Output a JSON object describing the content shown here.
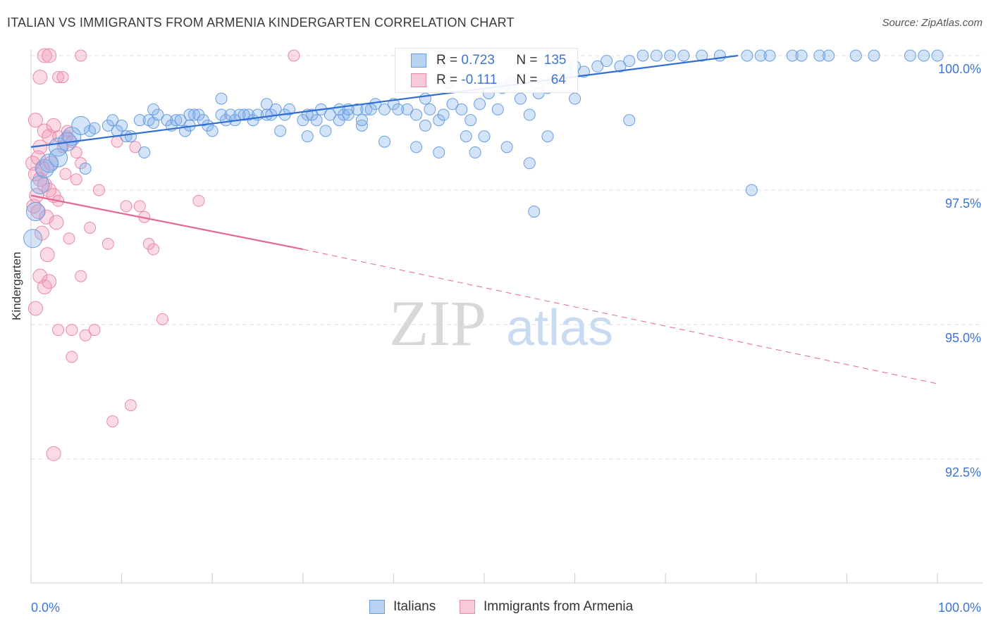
{
  "title": "ITALIAN VS IMMIGRANTS FROM ARMENIA KINDERGARTEN CORRELATION CHART",
  "source": "Source: ZipAtlas.com",
  "watermark": {
    "zip": "ZIP",
    "atlas": "atlas"
  },
  "colors": {
    "blue": "#6a9ee0",
    "blue_line": "#2f6fd1",
    "pink": "#e98aa9",
    "pink_line": "#e4688f",
    "tick_text": "#3d75d6"
  },
  "legend": {
    "italians": {
      "r_label": "R =",
      "r_value": "0.723",
      "n_label": "N =",
      "n_value": "135"
    },
    "armenia": {
      "r_label": "R =",
      "r_value": "-0.111",
      "n_label": "N =",
      "n_value": "64"
    }
  },
  "bottom_legend": {
    "italians": "Italians",
    "armenia": "Immigrants from Armenia"
  },
  "chart_data": {
    "type": "scatter",
    "title": "ITALIAN VS IMMIGRANTS FROM ARMENIA KINDERGARTEN CORRELATION CHART",
    "xlabel": "",
    "ylabel": "Kindergarten",
    "xlim": [
      0,
      100
    ],
    "ylim": [
      90.2,
      100.3
    ],
    "x_tick_labels": [
      "0.0%",
      "100.0%"
    ],
    "y_ticks": [
      92.5,
      95.0,
      97.5,
      100.0
    ],
    "y_tick_labels": [
      "92.5%",
      "95.0%",
      "97.5%",
      "100.0%"
    ],
    "grid": true,
    "series": [
      {
        "name": "Italians",
        "points": [
          [
            0.2,
            96.6
          ],
          [
            0.5,
            97.1
          ],
          [
            1.0,
            97.6
          ],
          [
            1.5,
            97.9
          ],
          [
            2.0,
            98.0
          ],
          [
            3.0,
            98.3
          ],
          [
            4.5,
            98.5
          ],
          [
            6.5,
            98.6
          ],
          [
            5.5,
            98.7
          ],
          [
            7.0,
            98.65
          ],
          [
            8.5,
            98.7
          ],
          [
            9.0,
            98.8
          ],
          [
            10.0,
            98.7
          ],
          [
            10.5,
            98.5
          ],
          [
            11.0,
            98.5
          ],
          [
            12.0,
            98.8
          ],
          [
            13.0,
            98.8
          ],
          [
            13.5,
            98.75
          ],
          [
            14.0,
            98.9
          ],
          [
            15.0,
            98.8
          ],
          [
            15.5,
            98.7
          ],
          [
            16.0,
            98.8
          ],
          [
            16.5,
            98.8
          ],
          [
            17.0,
            98.6
          ],
          [
            17.5,
            98.9
          ],
          [
            18.0,
            98.9
          ],
          [
            18.5,
            98.9
          ],
          [
            19.5,
            98.7
          ],
          [
            20.0,
            98.6
          ],
          [
            21.0,
            98.9
          ],
          [
            21.5,
            98.8
          ],
          [
            22.0,
            98.9
          ],
          [
            22.5,
            98.8
          ],
          [
            23.0,
            98.9
          ],
          [
            24.0,
            98.9
          ],
          [
            24.5,
            98.8
          ],
          [
            25.0,
            98.9
          ],
          [
            26.0,
            98.9
          ],
          [
            26.5,
            98.9
          ],
          [
            27.0,
            99.0
          ],
          [
            28.0,
            98.9
          ],
          [
            28.5,
            99.0
          ],
          [
            30.0,
            98.8
          ],
          [
            30.5,
            98.9
          ],
          [
            31.5,
            98.8
          ],
          [
            32.0,
            99.0
          ],
          [
            33.0,
            98.9
          ],
          [
            34.0,
            98.8
          ],
          [
            34.5,
            98.9
          ],
          [
            35.0,
            98.9
          ],
          [
            36.0,
            99.0
          ],
          [
            36.5,
            98.7
          ],
          [
            37.0,
            99.0
          ],
          [
            38.0,
            99.1
          ],
          [
            39.0,
            99.0
          ],
          [
            40.0,
            99.1
          ],
          [
            40.5,
            99.0
          ],
          [
            41.5,
            99.0
          ],
          [
            42.5,
            98.9
          ],
          [
            43.5,
            99.2
          ],
          [
            44.0,
            99.0
          ],
          [
            45.0,
            98.8
          ],
          [
            45.5,
            98.9
          ],
          [
            46.5,
            99.1
          ],
          [
            47.5,
            99.0
          ],
          [
            48.5,
            98.8
          ],
          [
            49.5,
            99.1
          ],
          [
            50.5,
            99.3
          ],
          [
            51.5,
            99.0
          ],
          [
            52.0,
            99.4
          ],
          [
            53.0,
            99.5
          ],
          [
            54.0,
            99.2
          ],
          [
            55.0,
            98.9
          ],
          [
            56.0,
            99.3
          ],
          [
            57.0,
            99.4
          ],
          [
            58.0,
            99.6
          ],
          [
            59.0,
            99.7
          ],
          [
            60.0,
            99.8
          ],
          [
            61.0,
            99.7
          ],
          [
            62.5,
            99.8
          ],
          [
            63.5,
            99.9
          ],
          [
            65.0,
            99.8
          ],
          [
            66.0,
            99.9
          ],
          [
            67.5,
            100.0
          ],
          [
            69.0,
            100.0
          ],
          [
            70.5,
            100.0
          ],
          [
            72.0,
            100.0
          ],
          [
            74.0,
            100.0
          ],
          [
            76.0,
            100.0
          ],
          [
            79.0,
            100.0
          ],
          [
            80.5,
            100.0
          ],
          [
            81.5,
            100.0
          ],
          [
            84.0,
            100.0
          ],
          [
            85.0,
            100.0
          ],
          [
            87.0,
            100.0
          ],
          [
            88.0,
            100.0
          ],
          [
            91.0,
            100.0
          ],
          [
            93.0,
            100.0
          ],
          [
            97.0,
            100.0
          ],
          [
            98.5,
            100.0
          ],
          [
            100.0,
            100.0
          ],
          [
            30.5,
            98.5
          ],
          [
            32.5,
            98.6
          ],
          [
            36.5,
            98.8
          ],
          [
            39.0,
            98.4
          ],
          [
            42.5,
            98.3
          ],
          [
            45.0,
            98.2
          ],
          [
            48.0,
            98.5
          ],
          [
            49.0,
            98.2
          ],
          [
            50.0,
            98.5
          ],
          [
            52.5,
            98.3
          ],
          [
            55.0,
            98.0
          ],
          [
            57.0,
            98.5
          ],
          [
            66.0,
            98.8
          ],
          [
            79.5,
            97.5
          ],
          [
            55.5,
            97.1
          ],
          [
            60.0,
            99.2
          ],
          [
            46.0,
            99.5
          ],
          [
            43.5,
            98.7
          ],
          [
            35.0,
            99.0
          ],
          [
            26.0,
            99.1
          ],
          [
            21.0,
            99.2
          ],
          [
            17.5,
            98.7
          ],
          [
            12.5,
            98.2
          ],
          [
            4.0,
            98.4
          ],
          [
            3.0,
            98.1
          ],
          [
            6.0,
            97.9
          ],
          [
            9.5,
            98.6
          ],
          [
            13.5,
            99.0
          ],
          [
            19.0,
            98.8
          ],
          [
            23.5,
            98.9
          ],
          [
            27.5,
            98.6
          ],
          [
            31.0,
            98.9
          ],
          [
            34.0,
            99.0
          ],
          [
            37.5,
            99.0
          ]
        ]
      },
      {
        "name": "Immigrants from Armenia",
        "points": [
          [
            1.5,
            100.0
          ],
          [
            2.0,
            100.0
          ],
          [
            5.5,
            100.0
          ],
          [
            29.0,
            100.0
          ],
          [
            1.0,
            99.6
          ],
          [
            3.0,
            99.6
          ],
          [
            3.5,
            99.6
          ],
          [
            0.5,
            98.8
          ],
          [
            1.5,
            98.6
          ],
          [
            2.0,
            98.5
          ],
          [
            3.0,
            98.5
          ],
          [
            3.5,
            98.3
          ],
          [
            4.0,
            98.5
          ],
          [
            4.5,
            98.4
          ],
          [
            5.0,
            98.2
          ],
          [
            5.5,
            98.0
          ],
          [
            0.2,
            98.0
          ],
          [
            0.5,
            97.8
          ],
          [
            1.0,
            97.7
          ],
          [
            1.5,
            97.6
          ],
          [
            2.0,
            97.5
          ],
          [
            2.5,
            97.4
          ],
          [
            3.0,
            97.3
          ],
          [
            0.3,
            97.2
          ],
          [
            0.8,
            97.1
          ],
          [
            1.2,
            96.7
          ],
          [
            1.8,
            96.3
          ],
          [
            9.5,
            98.4
          ],
          [
            11.5,
            98.3
          ],
          [
            12.0,
            97.2
          ],
          [
            12.5,
            97.0
          ],
          [
            13.0,
            96.5
          ],
          [
            13.5,
            96.4
          ],
          [
            18.5,
            97.3
          ],
          [
            1.0,
            95.9
          ],
          [
            1.5,
            95.7
          ],
          [
            2.0,
            95.8
          ],
          [
            0.5,
            95.3
          ],
          [
            3.0,
            94.9
          ],
          [
            4.5,
            94.9
          ],
          [
            5.5,
            95.9
          ],
          [
            6.0,
            94.8
          ],
          [
            7.0,
            94.9
          ],
          [
            8.5,
            96.5
          ],
          [
            14.5,
            95.1
          ],
          [
            4.5,
            94.4
          ],
          [
            11.0,
            93.5
          ],
          [
            9.0,
            93.2
          ],
          [
            2.5,
            92.6
          ],
          [
            1.0,
            98.3
          ],
          [
            2.5,
            98.7
          ],
          [
            4.0,
            98.6
          ],
          [
            0.8,
            98.1
          ],
          [
            1.3,
            97.9
          ],
          [
            2.2,
            98.0
          ],
          [
            3.8,
            97.8
          ],
          [
            5.0,
            97.7
          ],
          [
            0.6,
            97.4
          ],
          [
            1.7,
            97.0
          ],
          [
            2.8,
            96.9
          ],
          [
            6.5,
            96.8
          ],
          [
            10.5,
            97.2
          ],
          [
            4.2,
            96.6
          ],
          [
            7.5,
            97.5
          ]
        ]
      }
    ],
    "trend_lines": [
      {
        "series": "Italians",
        "x": [
          0,
          78
        ],
        "y": [
          98.3,
          100.0
        ]
      },
      {
        "series": "Immigrants from Armenia",
        "x_solid": [
          0,
          30
        ],
        "x_dashed": [
          30,
          100
        ],
        "y_at_x0": 97.4,
        "y_at_x30": 96.4,
        "y_at_x100": 93.9
      }
    ]
  }
}
